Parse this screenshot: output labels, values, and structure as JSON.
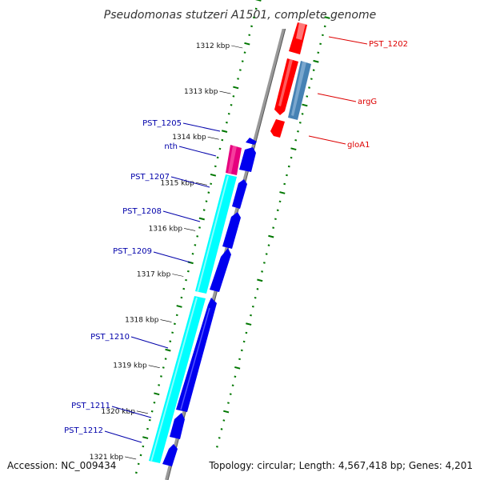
{
  "title": "Pseudomonas stutzeri A1501, complete genome",
  "footer": {
    "accession": "Accession: NC_009434",
    "topology": "Topology: circular; Length: 4,567,418 bp; Genes: 4,201"
  },
  "ticks": [
    {
      "label": "1312 kbp",
      "kbp": 1312
    },
    {
      "label": "1313 kbp",
      "kbp": 1313
    },
    {
      "label": "1314 kbp",
      "kbp": 1314
    },
    {
      "label": "1315 kbp",
      "kbp": 1315
    },
    {
      "label": "1316 kbp",
      "kbp": 1316
    },
    {
      "label": "1317 kbp",
      "kbp": 1317
    },
    {
      "label": "1318 kbp",
      "kbp": 1318
    },
    {
      "label": "1319 kbp",
      "kbp": 1319
    },
    {
      "label": "1320 kbp",
      "kbp": 1320
    },
    {
      "label": "1321 kbp",
      "kbp": 1321
    }
  ],
  "genes_reverse": [
    {
      "label": "PST_1202",
      "color": "#dd0000"
    },
    {
      "label": "argG",
      "color": "#dd0000"
    },
    {
      "label": "gloA1",
      "color": "#dd0000"
    }
  ],
  "genes_forward": [
    {
      "label": "PST_1205",
      "color": "#0000aa"
    },
    {
      "label": "nth",
      "color": "#0000aa"
    },
    {
      "label": "PST_1207",
      "color": "#0000aa"
    },
    {
      "label": "PST_1208",
      "color": "#0000aa"
    },
    {
      "label": "PST_1209",
      "color": "#0000aa"
    },
    {
      "label": "PST_1210",
      "color": "#0000aa"
    },
    {
      "label": "PST_1211",
      "color": "#0000aa"
    },
    {
      "label": "PST_1212",
      "color": "#0000aa"
    }
  ],
  "colors": {
    "forward_cds": "#0000ee",
    "reverse_cds": "#ff0000",
    "reverse_gene_feature": "#4682b4",
    "forward_gene_feature": "#00ffff",
    "trna_feature": "#e6007e",
    "backbone": "#888888",
    "tick": "#007700"
  }
}
